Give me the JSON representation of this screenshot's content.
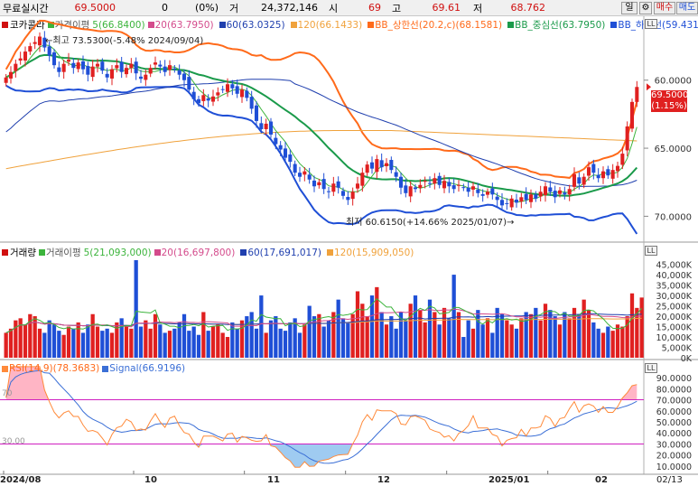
{
  "topbar": {
    "mode_label": "무료실시간",
    "price": "69.5000",
    "change": "0",
    "change_pct": "(0%)",
    "volume_label": "거",
    "volume": "24,372,146",
    "open_label": "시",
    "open": "69",
    "high_label": "고",
    "high": "69.61",
    "low_label": "저",
    "low": "68.762",
    "period_btn": "일",
    "gear_icon": "gear-icon",
    "buy_btn": "매수",
    "sell_btn": "매도"
  },
  "price_panel": {
    "legend": {
      "stock_name": "코카콜라",
      "ma_title": "가격이평",
      "ma5": "5(66.8400)",
      "ma20": "20(63.7950)",
      "ma60": "60(63.0325)",
      "ma120": "120(66.1433)",
      "bb_upper": "BB_상한선(20.2,c)(68.1581)",
      "bb_mid": "BB_중심선(63.7950)",
      "bb_lower": "BB_하한선(59.4319)"
    },
    "high_note": "←최고 73.5300(-5.48% 2024/09/04)",
    "low_note": "최저 60.6150(+14.66% 2025/01/07)→",
    "price_tag": "69.5000",
    "price_tag_pct": "(1.15%)",
    "y_ticks": [
      "70.0000",
      "65.0000",
      "60.0000"
    ],
    "icon_label": "LL"
  },
  "volume_panel": {
    "legend": {
      "title": "거래량",
      "ma_title": "거래이평",
      "ma5": "5(21,093,000)",
      "ma20": "20(16,697,800)",
      "ma60": "60(17,691,017)",
      "ma120": "120(15,909,050)"
    },
    "y_ticks": [
      "45,000K",
      "40,000K",
      "35,000K",
      "30,000K",
      "25,000K",
      "20,000K",
      "15,000K",
      "10,000K",
      "5,000K",
      "0K"
    ],
    "icon_label": "LL"
  },
  "rsi_panel": {
    "legend": {
      "rsi": "RSI(14,9)(78.3683)",
      "signal": "Signal(66.9196)"
    },
    "level_70": "70",
    "level_30": "30.00",
    "y_ticks": [
      "90.0000",
      "80.0000",
      "70.0000",
      "60.0000",
      "50.0000",
      "40.0000",
      "30.0000",
      "20.0000",
      "10.0000"
    ],
    "icon_label": "LL"
  },
  "x_axis": [
    "2024/08",
    "10",
    "11",
    "12",
    "2025/01",
    "02",
    "02/13"
  ],
  "colors": {
    "up": "#e02020",
    "down": "#1f4fd6",
    "ma5": "#3cb43c",
    "ma20": "#d44b8c",
    "ma60": "#1f3fae",
    "ma120": "#f0a23c",
    "bb_upper": "#ff6a1a",
    "bb_mid": "#1a9a4a",
    "bb_lower": "#1f4fd6",
    "rsi": "#ff8a3a",
    "signal": "#3b6fd6",
    "guide": "#d020c0"
  },
  "chart_data": [
    {
      "type": "candlestick",
      "title": "코카콜라",
      "ylim": [
        58.5,
        73.5
      ],
      "y_ticks": [
        60,
        65,
        70
      ],
      "x_ticks": [
        "2024/08",
        "10",
        "11",
        "12",
        "2025/01",
        "02"
      ],
      "closes": [
        70.2,
        70.6,
        71.2,
        71.6,
        72.1,
        72.5,
        72.8,
        73.2,
        72.4,
        71.8,
        71.1,
        70.6,
        71.2,
        71.5,
        70.9,
        71.3,
        70.8,
        70.4,
        71.0,
        71.2,
        70.7,
        70.2,
        70.8,
        71.1,
        70.6,
        70.9,
        71.2,
        70.5,
        70.1,
        70.4,
        70.9,
        71.3,
        71.0,
        70.6,
        71.1,
        70.8,
        70.4,
        70.0,
        69.3,
        68.6,
        68.3,
        68.9,
        68.5,
        68.8,
        69.1,
        69.3,
        69.7,
        69.4,
        69.0,
        69.3,
        68.7,
        67.9,
        67.0,
        66.4,
        66.8,
        66.0,
        65.3,
        64.9,
        64.3,
        64.0,
        63.2,
        62.9,
        63.3,
        62.7,
        62.2,
        62.5,
        62.0,
        61.8,
        62.4,
        62.1,
        61.5,
        61.2,
        61.8,
        62.4,
        63.2,
        63.8,
        63.5,
        64.2,
        63.6,
        63.9,
        63.4,
        62.9,
        62.1,
        61.7,
        62.2,
        62.0,
        62.3,
        62.6,
        62.4,
        62.8,
        62.3,
        62.6,
        62.2,
        62.0,
        62.3,
        62.1,
        61.8,
        62.2,
        61.7,
        61.5,
        61.8,
        61.6,
        61.2,
        60.8,
        60.9,
        61.3,
        61.0,
        61.4,
        61.2,
        61.6,
        61.3,
        61.8,
        62.2,
        61.8,
        61.4,
        61.9,
        61.6,
        62.0,
        63.1,
        62.4,
        62.9,
        63.6,
        63.2,
        62.8,
        63.3,
        63.0,
        63.4,
        63.7,
        64.6,
        66.6,
        68.4,
        69.5
      ],
      "ma5_last": 66.84,
      "ma20_last": 63.795,
      "ma60_last": 63.0325,
      "ma120_last": 66.1433,
      "bb_upper_last": 68.1581,
      "bb_mid_last": 63.795,
      "bb_lower_last": 59.4319,
      "high": {
        "value": 73.53,
        "date": "2024/09/04"
      },
      "low": {
        "value": 60.615,
        "date": "2025/01/07"
      }
    },
    {
      "type": "bar",
      "title": "거래량",
      "ylim": [
        0,
        47000
      ],
      "units": "K",
      "values": [
        12000,
        14000,
        18000,
        19000,
        16000,
        21000,
        20000,
        14000,
        12000,
        18000,
        16000,
        13000,
        11000,
        15000,
        14000,
        17000,
        12000,
        16000,
        21000,
        15000,
        13000,
        14000,
        12000,
        17000,
        19000,
        15000,
        14000,
        47000,
        15000,
        18000,
        14000,
        21000,
        16000,
        12000,
        13000,
        14000,
        17000,
        21000,
        13000,
        15000,
        11000,
        22000,
        13000,
        15000,
        16000,
        12000,
        10000,
        17000,
        14000,
        18000,
        20000,
        22000,
        14000,
        30000,
        12000,
        18000,
        20000,
        14000,
        13000,
        17000,
        19000,
        12000,
        16000,
        25000,
        20000,
        21000,
        15000,
        18000,
        22000,
        28000,
        19000,
        17000,
        21000,
        32000,
        26000,
        20000,
        30000,
        34000,
        22000,
        16000,
        20000,
        14000,
        22000,
        18000,
        26000,
        30000,
        23000,
        17000,
        28000,
        22000,
        16000,
        24000,
        19000,
        40000,
        22000,
        10000,
        18000,
        14000,
        23000,
        16000,
        19000,
        12000,
        24000,
        21000,
        18000,
        16000,
        14000,
        19000,
        22000,
        21000,
        24000,
        18000,
        26000,
        23000,
        20000,
        16000,
        22000,
        19000,
        24000,
        21000,
        28000,
        23000,
        17000,
        14000,
        12000,
        15000,
        13000,
        16000,
        15000,
        20000,
        31000,
        24000,
        29000
      ]
    },
    {
      "type": "line",
      "title": "RSI",
      "ylim": [
        5,
        95
      ],
      "series": [
        {
          "name": "RSI(14,9)",
          "last": 78.3683
        },
        {
          "name": "Signal",
          "last": 66.9196
        }
      ],
      "guides": [
        70,
        30
      ]
    }
  ]
}
